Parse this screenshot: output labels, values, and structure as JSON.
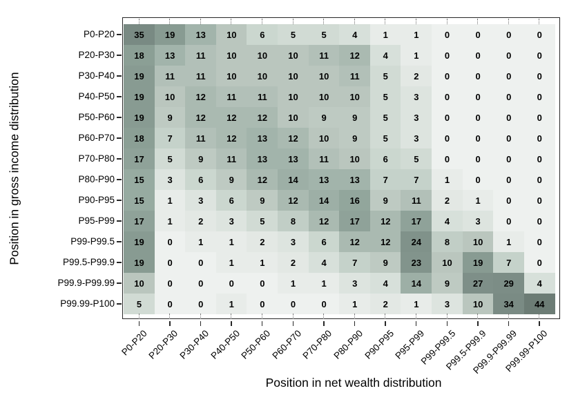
{
  "chart_data": {
    "type": "heatmap",
    "xlabel": "Position in net wealth distribution",
    "ylabel": "Position in gross income distribution",
    "rows": [
      "P0-P20",
      "P20-P30",
      "P30-P40",
      "P40-P50",
      "P50-P60",
      "P60-P70",
      "P70-P80",
      "P80-P90",
      "P90-P95",
      "P95-P99",
      "P99-P99.5",
      "P99.5-P99.9",
      "P99.9-P99.99",
      "P99.99-P100"
    ],
    "cols": [
      "P0-P20",
      "P20-P30",
      "P30-P40",
      "P40-P50",
      "P50-P60",
      "P60-P70",
      "P70-P80",
      "P80-P90",
      "P90-P95",
      "P95-P99",
      "P99-P99.5",
      "P99.5-P99.9",
      "P99.9-P99.99",
      "P99.99-P100"
    ],
    "values": [
      [
        35,
        19,
        13,
        10,
        6,
        5,
        5,
        4,
        1,
        1,
        0,
        0,
        0,
        0
      ],
      [
        18,
        13,
        11,
        10,
        10,
        10,
        11,
        12,
        4,
        1,
        0,
        0,
        0,
        0
      ],
      [
        19,
        11,
        11,
        10,
        10,
        10,
        10,
        11,
        5,
        2,
        0,
        0,
        0,
        0
      ],
      [
        19,
        10,
        12,
        11,
        11,
        10,
        10,
        10,
        5,
        3,
        0,
        0,
        0,
        0
      ],
      [
        19,
        9,
        12,
        12,
        12,
        10,
        9,
        9,
        5,
        3,
        0,
        0,
        0,
        0
      ],
      [
        18,
        7,
        11,
        12,
        13,
        12,
        10,
        9,
        5,
        3,
        0,
        0,
        0,
        0
      ],
      [
        17,
        5,
        9,
        11,
        13,
        13,
        11,
        10,
        6,
        5,
        0,
        0,
        0,
        0
      ],
      [
        15,
        3,
        6,
        9,
        12,
        14,
        13,
        13,
        7,
        7,
        1,
        0,
        0,
        0
      ],
      [
        15,
        1,
        3,
        6,
        9,
        12,
        14,
        16,
        9,
        11,
        2,
        1,
        0,
        0
      ],
      [
        17,
        1,
        2,
        3,
        5,
        8,
        12,
        17,
        12,
        17,
        4,
        3,
        0,
        0
      ],
      [
        19,
        0,
        1,
        1,
        2,
        3,
        6,
        12,
        12,
        24,
        8,
        10,
        1,
        0
      ],
      [
        19,
        0,
        0,
        1,
        1,
        2,
        4,
        7,
        9,
        23,
        10,
        19,
        7,
        0
      ],
      [
        10,
        0,
        0,
        0,
        0,
        1,
        1,
        3,
        4,
        14,
        9,
        27,
        29,
        4
      ],
      [
        5,
        0,
        0,
        1,
        0,
        0,
        0,
        1,
        2,
        1,
        3,
        10,
        34,
        44
      ]
    ],
    "value_range": [
      0,
      44
    ],
    "grid": "off",
    "legend": "none",
    "color_scale_anchors": [
      [
        0,
        "#eef1ef"
      ],
      [
        1,
        "#e8ece9"
      ],
      [
        2,
        "#e3e8e4"
      ],
      [
        3,
        "#dde4df"
      ],
      [
        5,
        "#d1dbd4"
      ],
      [
        7,
        "#c5d2ca"
      ],
      [
        10,
        "#bac6be"
      ],
      [
        13,
        "#a2b4ab"
      ],
      [
        16,
        "#92a69c"
      ],
      [
        19,
        "#889b92"
      ],
      [
        24,
        "#80928a"
      ],
      [
        29,
        "#7c8d86"
      ],
      [
        35,
        "#798a83"
      ],
      [
        44,
        "#6c7c75"
      ]
    ]
  }
}
